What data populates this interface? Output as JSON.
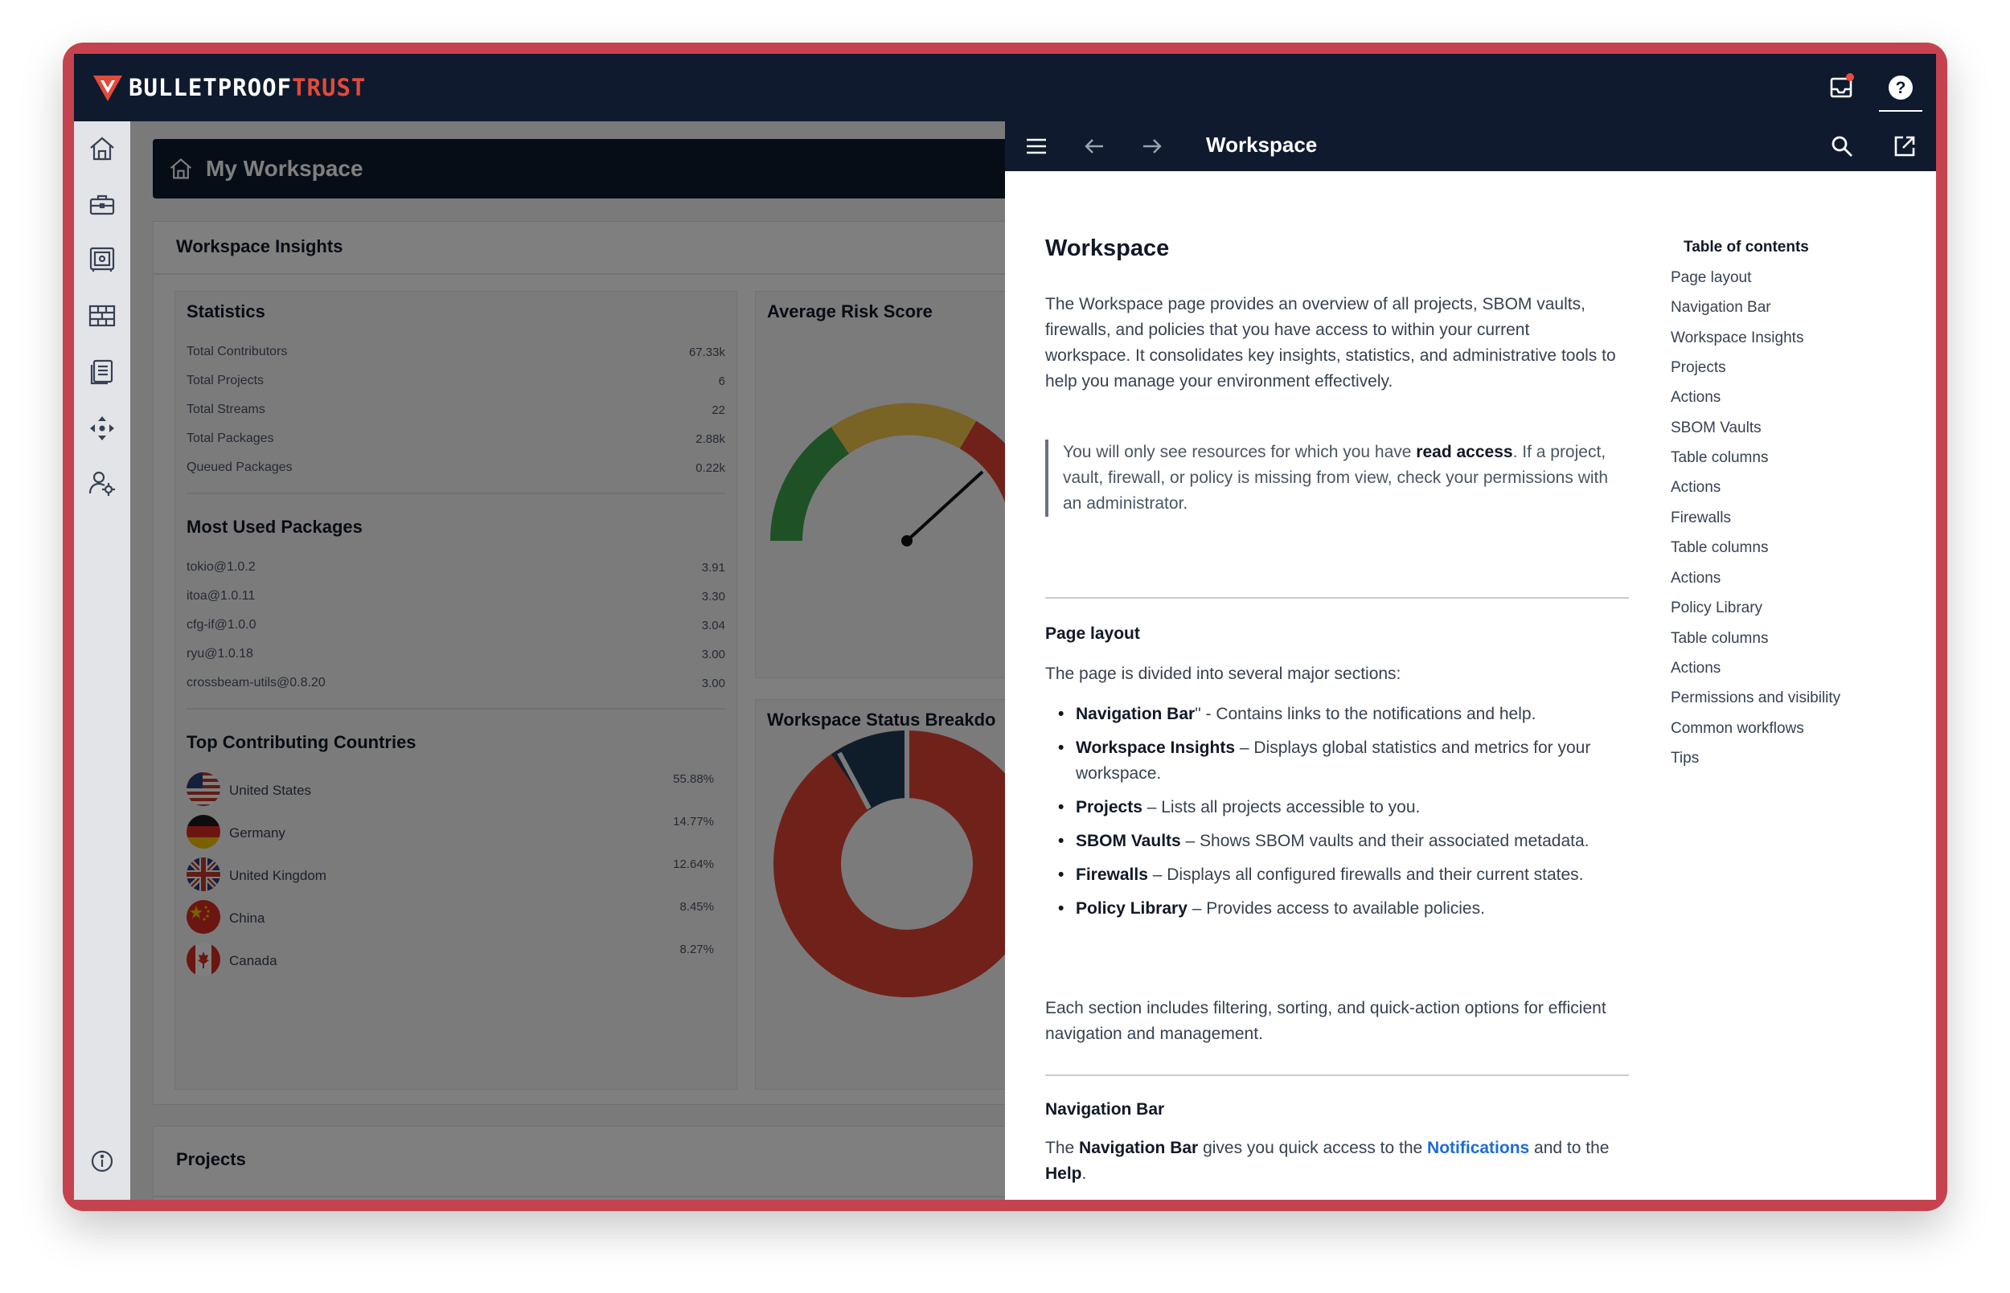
{
  "app": {
    "brand_primary": "BULLETPROOF",
    "brand_accent": "TRUST",
    "colors": {
      "navy": "#0f1a2e",
      "accent_red": "#e14b3b",
      "frame": "#c4434e",
      "link": "#1e6bd6"
    }
  },
  "topbar": {
    "icons": [
      "inbox-icon",
      "help-icon"
    ]
  },
  "sidebar": {
    "icons": [
      "home-icon",
      "briefcase-icon",
      "vault-icon",
      "firewall-icon",
      "document-icon",
      "move-icon",
      "user-settings-icon",
      "info-icon"
    ]
  },
  "header": {
    "title": "My Workspace"
  },
  "insights": {
    "title": "Workspace Insights",
    "statistics": {
      "title": "Statistics",
      "rows": [
        {
          "label": "Total Contributors",
          "value": "67.33k"
        },
        {
          "label": "Total Projects",
          "value": "6"
        },
        {
          "label": "Total Streams",
          "value": "22"
        },
        {
          "label": "Total Packages",
          "value": "2.88k"
        },
        {
          "label": "Queued Packages",
          "value": "0.22k"
        }
      ]
    },
    "packages": {
      "title": "Most Used Packages",
      "rows": [
        {
          "label": "tokio@1.0.2",
          "value": "3.91"
        },
        {
          "label": "itoa@1.0.11",
          "value": "3.30"
        },
        {
          "label": "cfg-if@1.0.0",
          "value": "3.04"
        },
        {
          "label": "ryu@1.0.18",
          "value": "3.00"
        },
        {
          "label": "crossbeam-utils@0.8.20",
          "value": "3.00"
        }
      ]
    },
    "countries": {
      "title": "Top Contributing Countries",
      "rows": [
        {
          "label": "United States",
          "value": "55.88%",
          "flag": "us-flag-icon"
        },
        {
          "label": "Germany",
          "value": "14.77%",
          "flag": "de-flag-icon"
        },
        {
          "label": "United Kingdom",
          "value": "12.64%",
          "flag": "gb-flag-icon"
        },
        {
          "label": "China",
          "value": "8.45%",
          "flag": "cn-flag-icon"
        },
        {
          "label": "Canada",
          "value": "8.27%",
          "flag": "ca-flag-icon"
        }
      ]
    },
    "risk": {
      "title": "Average Risk Score"
    },
    "status": {
      "title": "Workspace Status Breakdo"
    }
  },
  "projects": {
    "title": "Projects"
  },
  "drawer": {
    "title": "Workspace",
    "doc": {
      "h1": "Workspace",
      "intro": "The Workspace page provides an overview of all projects, SBOM vaults, firewalls, and policies that you have access to within your current workspace. It consolidates key insights, statistics, and administrative tools to help you manage your environment effectively.",
      "note_before": "You will only see resources for which you have ",
      "note_bold": "read access",
      "note_after": ". If a project, vault, firewall, or policy is missing from view, check your permissions with an administrator.",
      "layout_heading": "Page layout",
      "layout_intro": "The page is divided into several major sections:",
      "sections": [
        {
          "name": "Navigation Bar",
          "desc": "\" - Contains links to the notifications and help."
        },
        {
          "name": "Workspace Insights",
          "desc": " – Displays global statistics and metrics for your workspace."
        },
        {
          "name": "Projects",
          "desc": " – Lists all projects accessible to you."
        },
        {
          "name": "SBOM Vaults",
          "desc": " – Shows SBOM vaults and their associated metadata."
        },
        {
          "name": "Firewalls",
          "desc": " – Displays all configured firewalls and their current states."
        },
        {
          "name": "Policy Library",
          "desc": " – Provides access to available policies."
        }
      ],
      "layout_outro": "Each section includes filtering, sorting, and quick-action options for efficient navigation and management.",
      "navbar_heading": "Navigation Bar",
      "navbar_t1": "The ",
      "navbar_b1": "Navigation Bar",
      "navbar_t2": " gives you quick access to the ",
      "navbar_link": "Notifications",
      "navbar_t3": " and to the ",
      "navbar_b2": "Help",
      "navbar_t4": "."
    },
    "toc": {
      "title": "Table of contents",
      "items": [
        "Page layout",
        "Navigation Bar",
        "Workspace Insights",
        "Projects",
        "Actions",
        "SBOM Vaults",
        "Table columns",
        "Actions",
        "Firewalls",
        "Table columns",
        "Actions",
        "Policy Library",
        "Table columns",
        "Actions",
        "Permissions and visibility",
        "Common workflows",
        "Tips"
      ]
    }
  }
}
